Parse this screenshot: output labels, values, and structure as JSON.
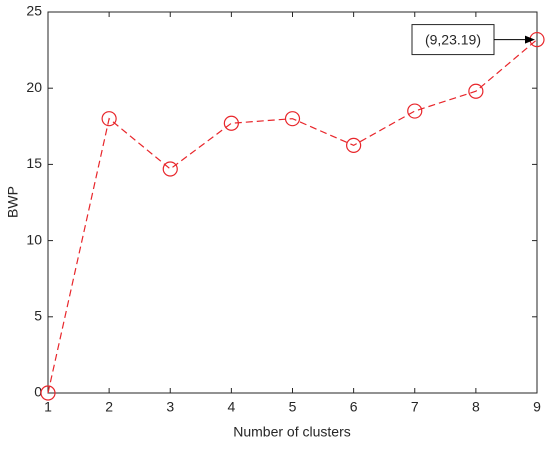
{
  "chart_data": {
    "type": "line",
    "xlabel": "Number of clusters",
    "ylabel": "BWP",
    "x": [
      1,
      2,
      3,
      4,
      5,
      6,
      7,
      8,
      9
    ],
    "series": [
      {
        "color": "#e8262b",
        "values": [
          0,
          18,
          14.7,
          17.7,
          18,
          16.25,
          18.5,
          19.8,
          23.19
        ]
      }
    ],
    "xlim": [
      1,
      9
    ],
    "xticks": [
      1,
      2,
      3,
      4,
      5,
      6,
      7,
      8,
      9
    ],
    "ylim": [
      0,
      25
    ],
    "yticks": [
      0,
      5,
      10,
      15,
      20,
      25
    ],
    "grid": false,
    "annotation": "(9,23.19)"
  }
}
